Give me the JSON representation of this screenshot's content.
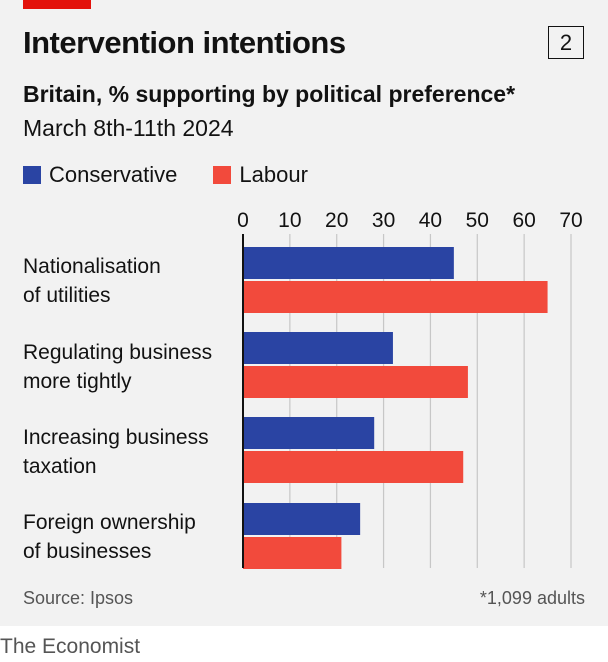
{
  "header": {
    "title": "Intervention intentions",
    "chart_number": "2",
    "subtitle": "Britain, % supporting by political preference*",
    "date": "March 8th-11th 2024"
  },
  "colors": {
    "conservative": "#2a44a3",
    "labour": "#f24a3c",
    "brand_red": "#e3120b",
    "gridline": "#c7c7c7",
    "axis": "#121212"
  },
  "chart_data": {
    "type": "bar",
    "orientation": "horizontal",
    "title": "Intervention intentions",
    "subtitle": "Britain, % supporting by political preference*",
    "categories": [
      [
        "Nationalisation",
        "of utilities"
      ],
      [
        "Regulating business",
        "more tightly"
      ],
      [
        "Increasing business",
        "taxation"
      ],
      [
        "Foreign ownership",
        "of businesses"
      ]
    ],
    "series": [
      {
        "name": "Conservative",
        "color": "#2a44a3",
        "values": [
          45,
          32,
          28,
          25
        ]
      },
      {
        "name": "Labour",
        "color": "#f24a3c",
        "values": [
          65,
          48,
          47,
          21
        ]
      }
    ],
    "xlim": [
      0,
      70
    ],
    "xticks": [
      "0",
      "10",
      "20",
      "30",
      "40",
      "50",
      "60",
      "70"
    ],
    "xtick_values": [
      0,
      10,
      20,
      30,
      40,
      50,
      60,
      70
    ],
    "grid": true,
    "legend_position": "top-left"
  },
  "footer": {
    "source": "Source: Ipsos",
    "footnote": "*1,099 adults",
    "publisher": "The Economist"
  }
}
